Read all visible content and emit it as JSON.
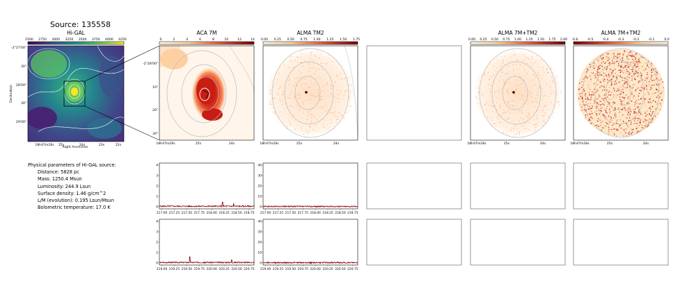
{
  "header": {
    "title": "Source: 135558"
  },
  "colors": {
    "dark_red": "#8b0000",
    "viridis_low": "#440154",
    "viridis_high": "#fde725",
    "hot_low": "#fff5eb",
    "hot_high": "#7f0000"
  },
  "params": {
    "heading": "Physical parameters of Hi-GAL source:",
    "lines": [
      "Distance: 5828 pc",
      "Mass: 1250.4 Msun",
      "Luminosity: 244.9 Lsun",
      "Surface density: 1.46 g/cm^2",
      "L/M (evolution): 0.195 Lsun/Msun",
      "Bolometric temperature: 17.0 K"
    ]
  },
  "panels": {
    "higal": {
      "title": "Hi-GAL",
      "colorbar_ticks": [
        "2500",
        "2750",
        "3000",
        "3250",
        "3500",
        "3750",
        "4000",
        "4250"
      ],
      "yticks": [
        "-2°27'00\"",
        "30\"",
        "28'00\"",
        "30\"",
        "29'00\""
      ],
      "xticks": [
        "18h47m26s",
        "25s",
        "24s",
        "23s",
        "22s"
      ],
      "ylabel": "Declination",
      "xlabel": "Right Ascension"
    },
    "aca": {
      "title": "ACA 7M",
      "colorbar_ticks": [
        "0",
        "2",
        "4",
        "6",
        "8",
        "10",
        "12",
        "14"
      ],
      "yticks": [
        "-2°28'00\"",
        "10\"",
        "20\"",
        "30\""
      ],
      "xticks": [
        "18h47m26s",
        "25s",
        "24s"
      ]
    },
    "alma": {
      "title": "ALMA TM2",
      "colorbar_ticks": [
        "0.00",
        "0.25",
        "0.50",
        "0.75",
        "1.00",
        "1.25",
        "1.50",
        "1.75"
      ],
      "xticks": [
        "18h47m26s",
        "25s",
        "24s"
      ]
    },
    "combo": {
      "title": "ALMA 7M+TM2",
      "colorbar_ticks": [
        "0.00",
        "0.25",
        "0.50",
        "0.75",
        "1.00",
        "1.25",
        "1.50",
        "1.75",
        "2.00"
      ],
      "xticks": [
        "18h47m26s",
        "25s",
        "24s"
      ]
    },
    "diff": {
      "title": "ALMA 7M+TM2",
      "colorbar_ticks": [
        "-0.6",
        "-0.5",
        "-0.4",
        "-0.3",
        "-0.2",
        "-0.1",
        "0.0"
      ],
      "xticks": [
        "18h47m26s",
        "25s",
        "24s"
      ]
    }
  },
  "chart_data": [
    {
      "type": "line",
      "name": "spectrum-aca-row1",
      "ylim": [
        0,
        4
      ],
      "yticks": [
        "0",
        "1",
        "2",
        "3",
        "4"
      ],
      "xticks": [
        "217.00",
        "217.25",
        "217.50",
        "217.75",
        "218.00",
        "218.25",
        "218.50",
        "218.75"
      ],
      "xlim": [
        216.95,
        218.85
      ],
      "baseline": 0.05,
      "peaks": [
        {
          "x": 218.22,
          "y": 0.45
        },
        {
          "x": 218.44,
          "y": 0.35
        }
      ]
    },
    {
      "type": "line",
      "name": "spectrum-alma-row1",
      "ylim": [
        0,
        40
      ],
      "yticks": [
        "0",
        "10",
        "20",
        "30",
        "40"
      ],
      "xticks": [
        "217.00",
        "217.25",
        "217.50",
        "217.75",
        "218.00",
        "218.25",
        "218.50",
        "218.75"
      ],
      "xlim": [
        216.95,
        218.85
      ],
      "baseline": 0.3,
      "peaks": []
    },
    {
      "type": "line",
      "name": "spectrum-aca-row2",
      "ylim": [
        0,
        4
      ],
      "yticks": [
        "0",
        "1",
        "2",
        "3",
        "4"
      ],
      "xticks": [
        "219.00",
        "219.25",
        "219.50",
        "219.75",
        "220.00",
        "220.25",
        "220.50",
        "220.75"
      ],
      "xlim": [
        218.95,
        220.85
      ],
      "baseline": 0.05,
      "peaks": [
        {
          "x": 219.56,
          "y": 0.6
        },
        {
          "x": 220.4,
          "y": 0.3
        }
      ]
    },
    {
      "type": "line",
      "name": "spectrum-alma-row2",
      "ylim": [
        0,
        40
      ],
      "yticks": [
        "0",
        "10",
        "20",
        "30",
        "40"
      ],
      "xticks": [
        "219.00",
        "219.25",
        "219.50",
        "219.75",
        "220.00",
        "220.25",
        "220.50",
        "220.75"
      ],
      "xlim": [
        218.95,
        220.85
      ],
      "baseline": 0.3,
      "peaks": []
    }
  ]
}
